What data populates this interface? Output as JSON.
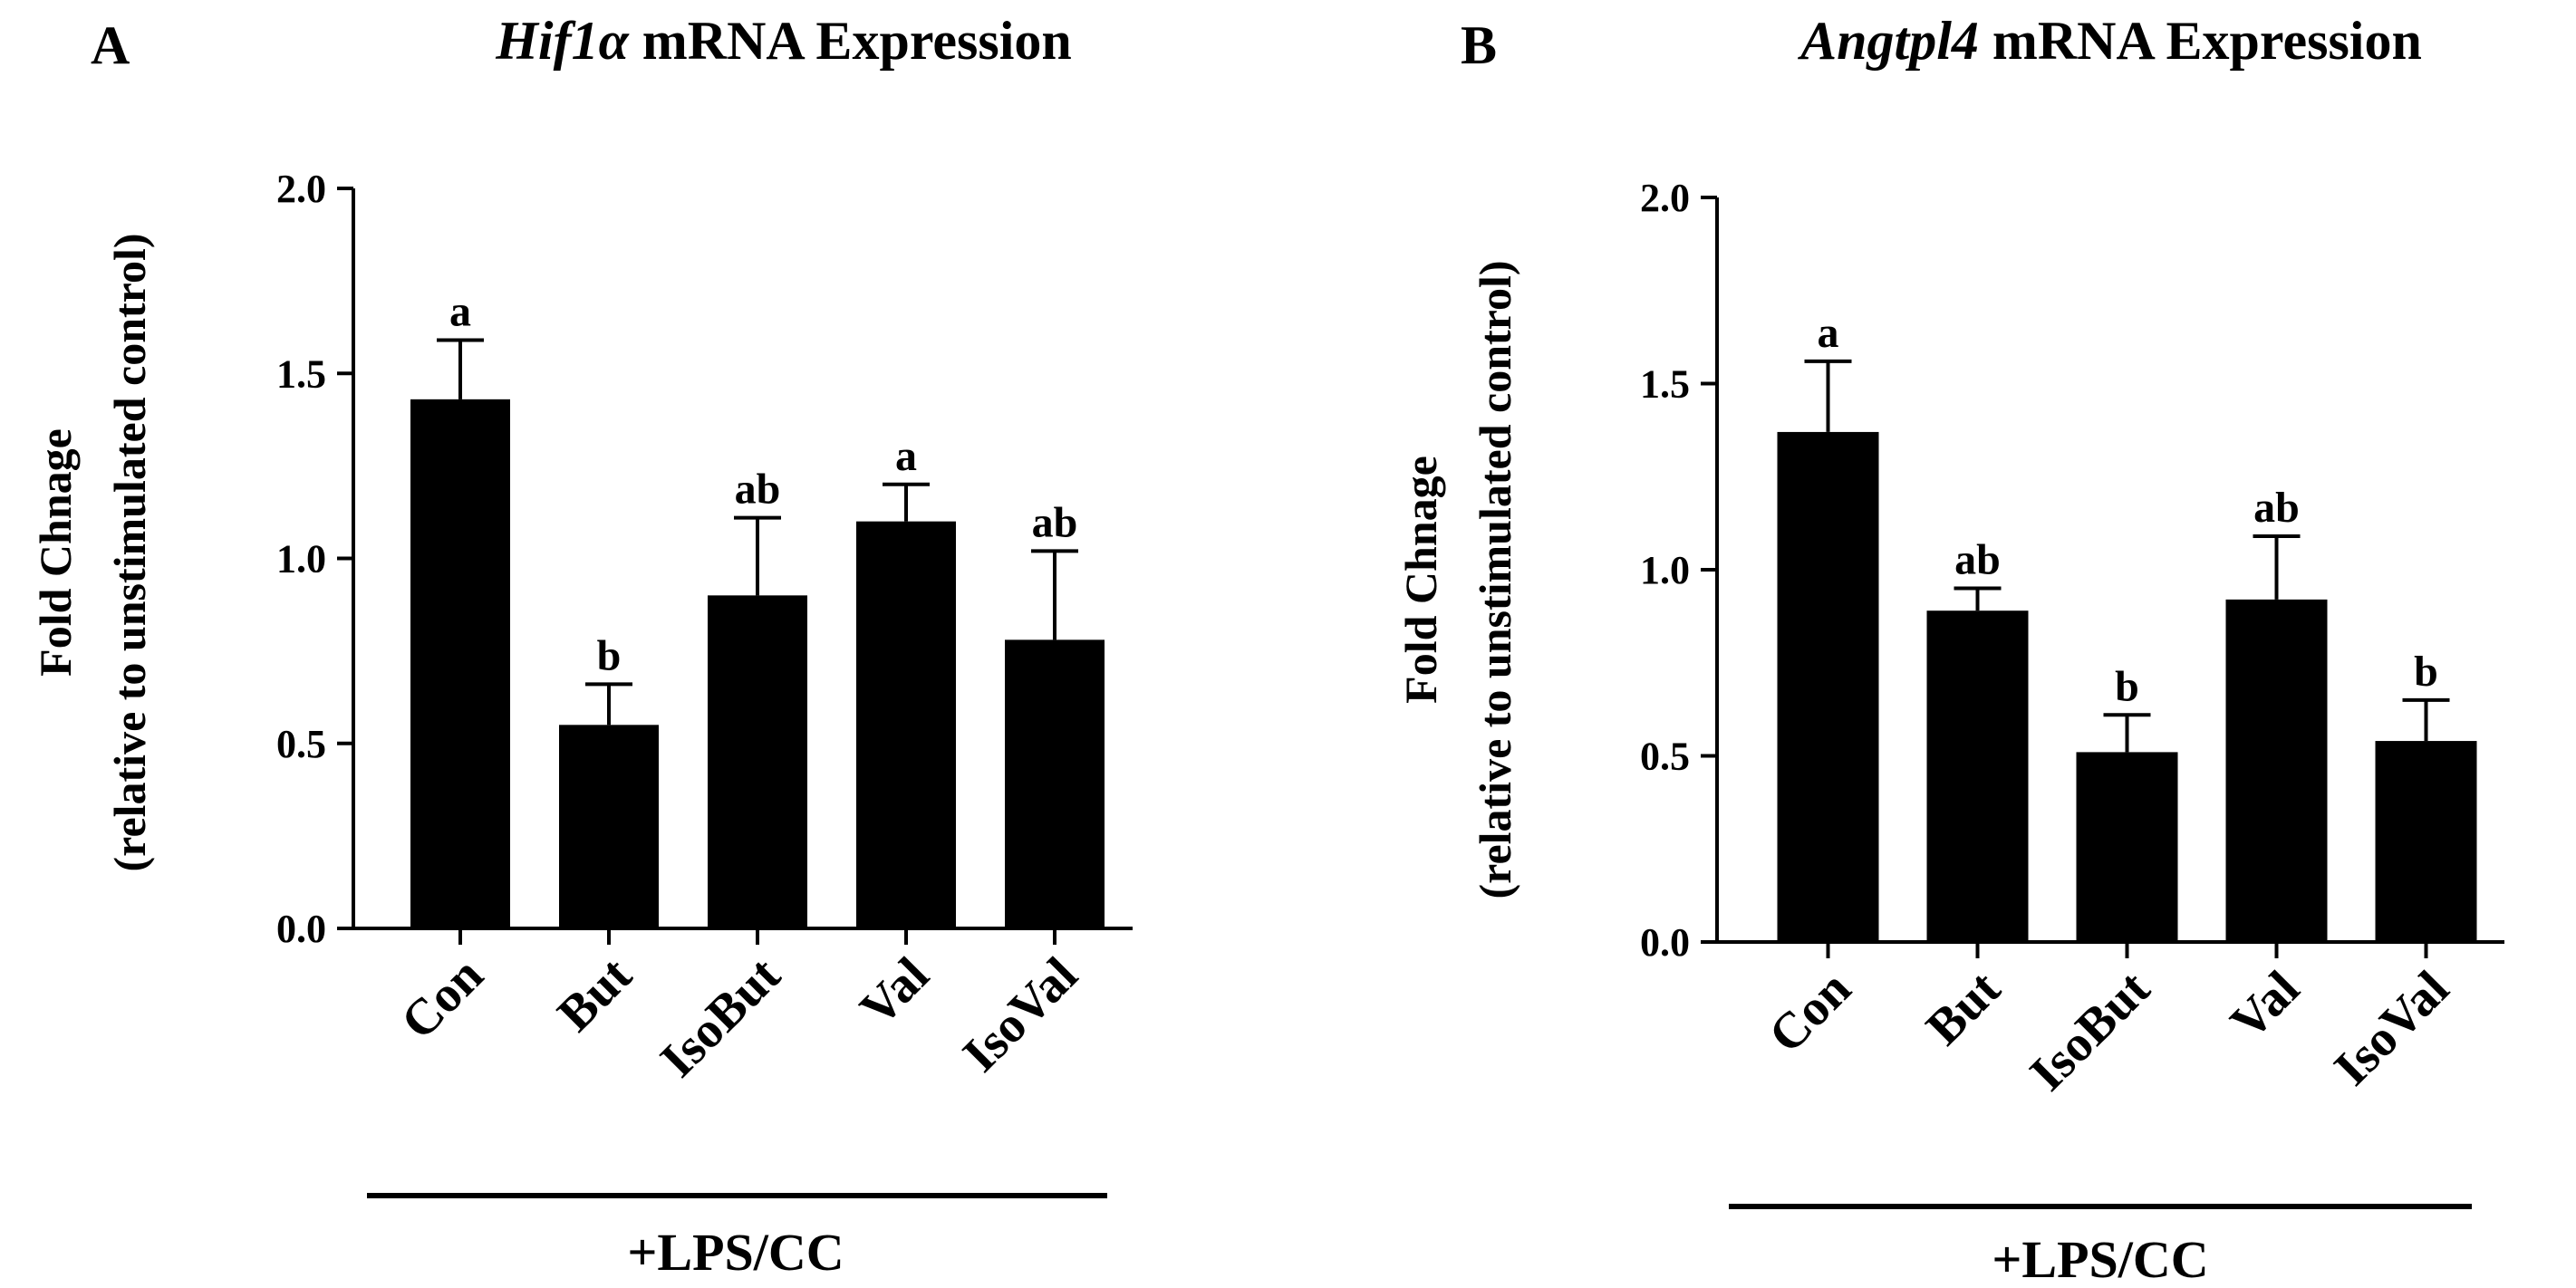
{
  "figure": {
    "treatment_label": "+LPS/CC"
  },
  "chart_data": [
    {
      "type": "bar",
      "panel": "A",
      "gene": "Hif1α",
      "title_rest": " mRNA Expression",
      "ylabel_line1": "Fold Chnage",
      "ylabel_line2": "(relative to unstimulated control)",
      "categories": [
        "Con",
        "But",
        "IsoBut",
        "Val",
        "IsoVal"
      ],
      "values": [
        1.43,
        0.55,
        0.9,
        1.1,
        0.78
      ],
      "errors": [
        0.16,
        0.11,
        0.21,
        0.1,
        0.24
      ],
      "significance": [
        "a",
        "b",
        "ab",
        "a",
        "ab"
      ],
      "ylim": [
        0,
        2.0
      ],
      "yticks": [
        "0.0",
        "0.5",
        "1.0",
        "1.5",
        "2.0"
      ],
      "treatment_label": "+LPS/CC",
      "colors": {
        "bar": "#000000"
      }
    },
    {
      "type": "bar",
      "panel": "B",
      "gene": "Angtpl4",
      "title_rest": " mRNA Expression",
      "ylabel_line1": "Fold Chnage",
      "ylabel_line2": "(relative to unstimulated control)",
      "categories": [
        "Con",
        "But",
        "IsoBut",
        "Val",
        "IsoVal"
      ],
      "values": [
        1.37,
        0.89,
        0.51,
        0.92,
        0.54
      ],
      "errors": [
        0.19,
        0.06,
        0.1,
        0.17,
        0.11
      ],
      "significance": [
        "a",
        "ab",
        "b",
        "ab",
        "b"
      ],
      "ylim": [
        0,
        2.0
      ],
      "yticks": [
        "0.0",
        "0.5",
        "1.0",
        "1.5",
        "2.0"
      ],
      "treatment_label": "+LPS/CC",
      "colors": {
        "bar": "#000000"
      }
    }
  ]
}
